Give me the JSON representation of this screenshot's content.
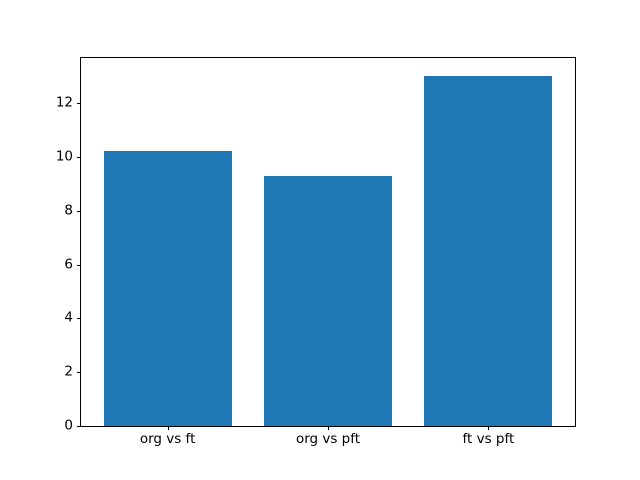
{
  "chart_data": {
    "type": "bar",
    "title": "",
    "categories": [
      "org vs ft",
      "org vs pft",
      "ft vs pft"
    ],
    "values": [
      10.2,
      9.3,
      13.0
    ],
    "xlabel": "",
    "ylabel": "",
    "ylim": [
      0,
      13.67
    ],
    "yticks": [
      0,
      2,
      4,
      6,
      8,
      10,
      12
    ],
    "xlim": [
      -0.54,
      2.54
    ],
    "bar_positions": [
      0,
      1,
      2
    ],
    "bar_width": 0.8,
    "bar_color": "#1f77b4",
    "axis_color": "#000000",
    "background_color": "#ffffff",
    "grid": false,
    "legend": null
  }
}
